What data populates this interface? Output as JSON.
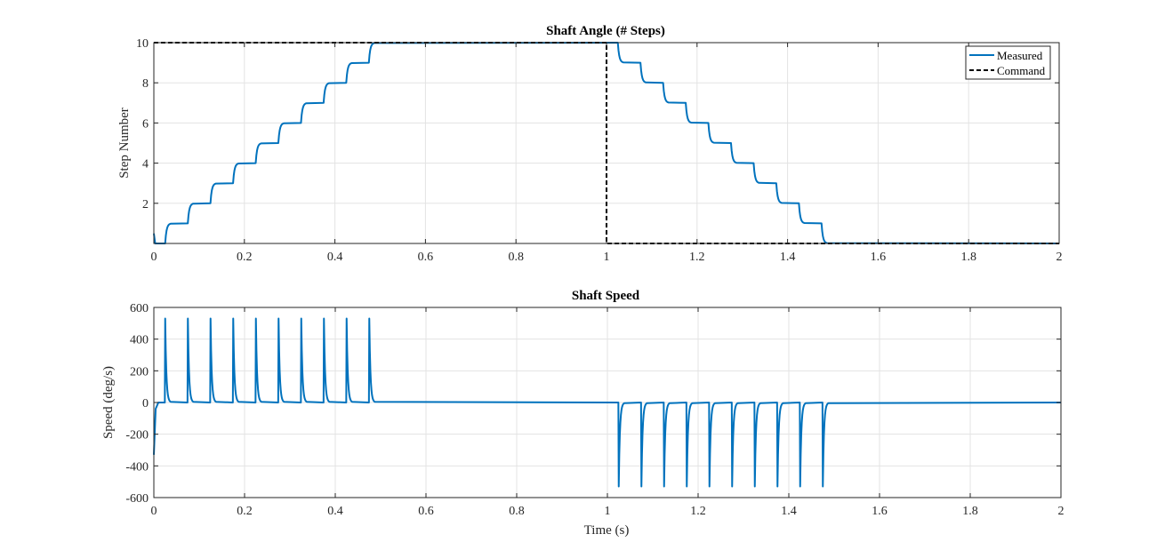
{
  "chart_data": [
    {
      "type": "line",
      "title": "Shaft Angle (# Steps)",
      "xlabel": "",
      "ylabel": "Step Number",
      "xlim": [
        0,
        2
      ],
      "ylim": [
        0,
        10
      ],
      "xticks": [
        0,
        0.2,
        0.4,
        0.6,
        0.8,
        1,
        1.2,
        1.4,
        1.6,
        1.8,
        2
      ],
      "xtick_labels": [
        "0",
        "0.2",
        "0.4",
        "0.6",
        "0.8",
        "1",
        "1.2",
        "1.4",
        "1.6",
        "1.8",
        "2"
      ],
      "yticks": [
        2,
        4,
        6,
        8,
        10
      ],
      "ytick_labels": [
        "2",
        "4",
        "6",
        "8",
        "10"
      ],
      "grid": true,
      "legend_position": "top-right",
      "series": [
        {
          "name": "Measured",
          "color": "#0072bd",
          "style": "solid",
          "step_times": [
            0.025,
            0.075,
            0.125,
            0.175,
            0.225,
            0.275,
            0.325,
            0.375,
            0.425,
            0.475,
            1.025,
            1.075,
            1.125,
            1.175,
            1.225,
            1.275,
            1.325,
            1.375,
            1.425,
            1.475
          ],
          "step_values": [
            1,
            2,
            3,
            4,
            5,
            6,
            7,
            8,
            9,
            10,
            9,
            8,
            7,
            6,
            5,
            4,
            3,
            2,
            1,
            0
          ],
          "initial_value": 0.5,
          "end_x": 2
        },
        {
          "name": "Command",
          "color": "#000000",
          "style": "dashed",
          "x": [
            0,
            1,
            1,
            2
          ],
          "y": [
            10,
            10,
            0,
            0
          ]
        }
      ]
    },
    {
      "type": "line",
      "title": "Shaft Speed",
      "xlabel": "Time (s)",
      "ylabel": "Speed (deg/s)",
      "xlim": [
        0,
        2
      ],
      "ylim": [
        -600,
        600
      ],
      "xticks": [
        0,
        0.2,
        0.4,
        0.6,
        0.8,
        1,
        1.2,
        1.4,
        1.6,
        1.8,
        2
      ],
      "xtick_labels": [
        "0",
        "0.2",
        "0.4",
        "0.6",
        "0.8",
        "1",
        "1.2",
        "1.4",
        "1.6",
        "1.8",
        "2"
      ],
      "yticks": [
        -600,
        -400,
        -200,
        0,
        200,
        400,
        600
      ],
      "ytick_labels": [
        "-600",
        "-400",
        "-200",
        "0",
        "200",
        "400",
        "600"
      ],
      "grid": true,
      "series": [
        {
          "color": "#0072bd",
          "style": "solid",
          "initial_value": -330,
          "positive_spike_times": [
            0.025,
            0.075,
            0.125,
            0.175,
            0.225,
            0.275,
            0.325,
            0.375,
            0.425,
            0.475
          ],
          "negative_spike_times": [
            1.025,
            1.075,
            1.125,
            1.175,
            1.225,
            1.275,
            1.325,
            1.375,
            1.425,
            1.475
          ],
          "spike_peak": 530,
          "baseline": 0
        }
      ]
    }
  ]
}
